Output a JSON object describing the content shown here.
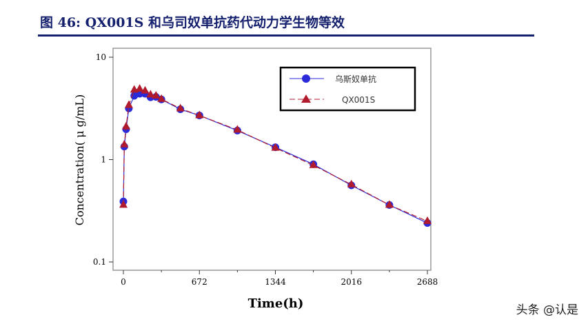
{
  "header": {
    "title": "图 46:  QX001S 和乌司奴单抗药代动力学生物等效"
  },
  "watermark": "头条 @认是",
  "chart_data": {
    "type": "line",
    "title": "",
    "xlabel": "Time(h)",
    "ylabel": "Concentration( μ g/mL)",
    "xlim": [
      0,
      2688
    ],
    "ylim": [
      0.1,
      10
    ],
    "yscale": "log",
    "xticks": [
      "0",
      "672",
      "1344",
      "2016",
      "2688"
    ],
    "yticks": [
      "0.1",
      "1",
      "10"
    ],
    "grid": false,
    "legend": "top-right",
    "x": [
      0,
      8,
      24,
      48,
      96,
      144,
      192,
      240,
      288,
      336,
      504,
      672,
      1008,
      1344,
      1680,
      2016,
      2352,
      2688
    ],
    "series": [
      {
        "name": "乌斯奴单抗",
        "color": "#2a2ad8",
        "marker": "circle",
        "values": [
          0.39,
          1.34,
          1.98,
          3.16,
          4.2,
          4.4,
          4.4,
          4.06,
          4.1,
          3.87,
          3.1,
          2.7,
          1.92,
          1.32,
          0.9,
          0.56,
          0.36,
          0.24
        ]
      },
      {
        "name": "QX001S",
        "color": "#b01c2e",
        "marker": "triangle",
        "values": [
          0.36,
          1.4,
          2.1,
          3.4,
          4.8,
          4.9,
          4.7,
          4.3,
          4.2,
          3.9,
          3.15,
          2.7,
          1.95,
          1.3,
          0.88,
          0.57,
          0.36,
          0.25
        ]
      }
    ]
  }
}
